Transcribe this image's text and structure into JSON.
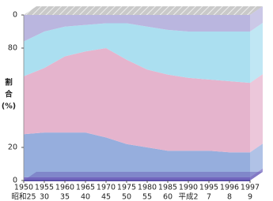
{
  "chart_data": {
    "type": "stacked-area",
    "y_label_lines": [
      "割",
      "合",
      "(%)"
    ],
    "categories": [
      "1950",
      "1955",
      "1960",
      "1965",
      "1970",
      "1975",
      "1980",
      "1985",
      "1990",
      "1995",
      "1996",
      "1997"
    ],
    "era_labels": [
      "昭和25",
      "30",
      "35",
      "40",
      "45",
      "50",
      "55",
      "60",
      "平成2",
      "7",
      "8",
      "9"
    ],
    "series": [
      {
        "color": "#7b6fc4",
        "values": [
          2,
          2,
          2,
          2,
          2,
          2,
          2,
          2,
          2,
          2,
          2,
          2
        ]
      },
      {
        "color": "#96aedd",
        "values": [
          26,
          27,
          27,
          27,
          24,
          20,
          18,
          16,
          16,
          16,
          15,
          15
        ]
      },
      {
        "color": "#e5b4cd",
        "values": [
          35,
          39,
          46,
          49,
          54,
          51,
          47,
          46,
          44,
          43,
          43,
          42
        ]
      },
      {
        "color": "#abdff0",
        "values": [
          21,
          22,
          18,
          16,
          15,
          22,
          26,
          27,
          28,
          29,
          30,
          31
        ]
      },
      {
        "color": "#bab6df",
        "values": [
          16,
          10,
          7,
          6,
          5,
          5,
          7,
          9,
          10,
          10,
          10,
          10
        ]
      }
    ],
    "ylim": [
      0,
      100
    ],
    "yticks": [
      0,
      20,
      80,
      {
        "value": 100,
        "label": "0"
      }
    ]
  }
}
